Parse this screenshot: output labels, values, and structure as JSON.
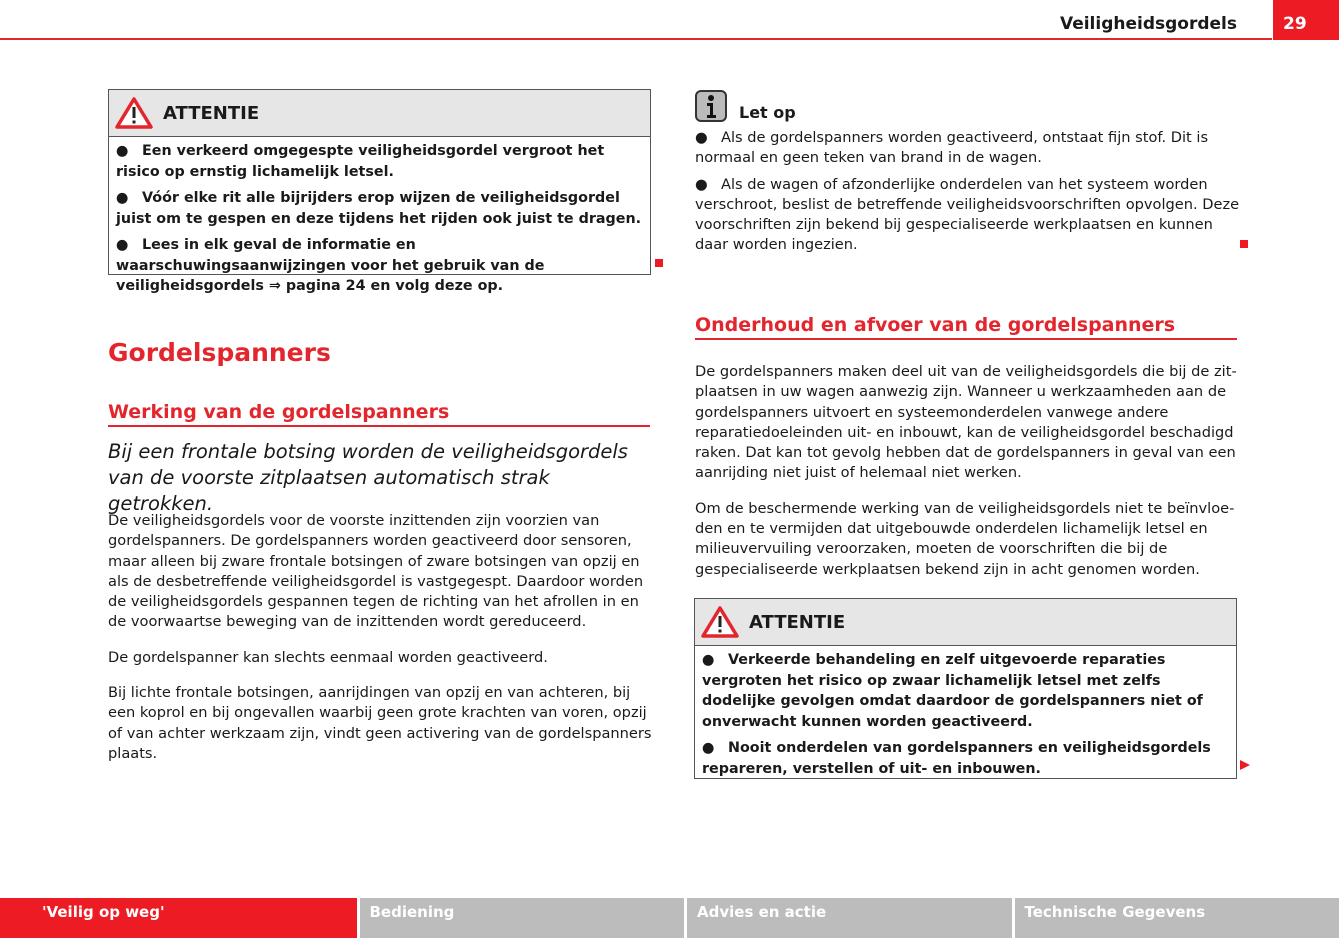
{
  "header": {
    "title": "Veiligheidsgordels",
    "page_number": "29",
    "accent": "#ed1c24"
  },
  "left": {
    "warning": {
      "title": "ATTENTIE",
      "icon": "warning-triangle-icon",
      "items": [
        "Een verkeerd omgegespte veiligheidsgordel vergroot het risico op ernstig lichamelijk letsel.",
        "Vóór elke rit alle bijrijders erop wijzen de veiligheidsgordel juist om te gespen en deze tijdens het rijden ook juist te dragen.",
        "Lees in elk geval de informatie en waarschuwingsaanwijzingen voor het gebruik van de veiligheidsgordels ⇒ pagina 24 en volg deze op."
      ]
    },
    "heading": "Gordelspanners",
    "subheading": "Werking van de gordelspanners",
    "lead": "Bij een frontale botsing worden de veiligheidsgordels van de voorste zitplaatsen automatisch strak getrokken.",
    "paragraphs": [
      "De veiligheidsgordels voor de voorste inzittenden zijn voorzien van gordel­spanners. De gordelspanners worden geactiveerd door sensoren, maar al­leen bij zware frontale botsingen of zware botsingen van opzij en als de desbetreffende veiligheidsgordel is vastgegespt. Daardoor worden de vei­ligheidsgordels gespannen tegen de richting van het afrollen in en de voor­waartse beweging van de inzittenden wordt gereduceerd.",
      "De gordelspanner kan slechts eenmaal worden geactiveerd.",
      "Bij lichte frontale botsingen, aanrijdingen van opzij en van achteren, bij een koprol en bij ongevallen waarbij geen grote krachten van voren, opzij of van achter werkzaam zijn, vindt geen activering van de gordelspanners plaats."
    ]
  },
  "right": {
    "note": {
      "title": "Let op",
      "icon": "info-icon",
      "items": [
        "Als de gordelspanners worden geactiveerd, ontstaat fijn stof. Dit is nor­maal en geen teken van brand in de wagen.",
        "Als de wagen of afzonderlijke onderdelen van het systeem worden ver­schroot, beslist de betreffende veiligheidsvoorschriften opvolgen. Deze voorschriften zijn bekend bij gespecialiseerde werkplaatsen en kunnen daar worden ingezien."
      ]
    },
    "subheading": "Onderhoud en afvoer van de gordelspanners",
    "paragraphs": [
      "De gordelspanners maken deel uit van de veiligheidsgordels die bij de zit­plaatsen in uw wagen aanwezig zijn. Wanneer u werkzaamheden aan de gordelspanners uitvoert en systeemonderdelen vanwege andere reparatie­doeleinden uit- en inbouwt, kan de veiligheidsgordel beschadigd raken. Dat kan tot gevolg hebben dat de gordelspanners in geval van een aanrijding niet juist of helemaal niet werken.",
      "Om de beschermende werking van de veiligheidsgordels niet te beïnvloe­den en te vermijden dat uitgebouwde onderdelen lichamelijk letsel en mili­euvervuiling veroorzaken, moeten de voorschriften die bij de gespeciali­seerde werkplaatsen bekend zijn in acht genomen worden."
    ],
    "warning": {
      "title": "ATTENTIE",
      "icon": "warning-triangle-icon",
      "items": [
        "Verkeerde behandeling en zelf uitgevoerde reparaties vergroten het risico op zwaar lichamelijk letsel met zelfs dodelijke gevolgen omdat daardoor de gordelspanners niet of onverwacht kunnen worden geacti­veerd.",
        "Nooit onderdelen van gordelspanners en veiligheidsgordels repare­ren, verstellen of uit- en inbouwen."
      ]
    }
  },
  "footer_tabs": [
    {
      "label": "'Veilig op weg'",
      "active": true
    },
    {
      "label": "Bediening",
      "active": false
    },
    {
      "label": "Advies en actie",
      "active": false
    },
    {
      "label": "Technische Gegevens",
      "active": false
    }
  ]
}
